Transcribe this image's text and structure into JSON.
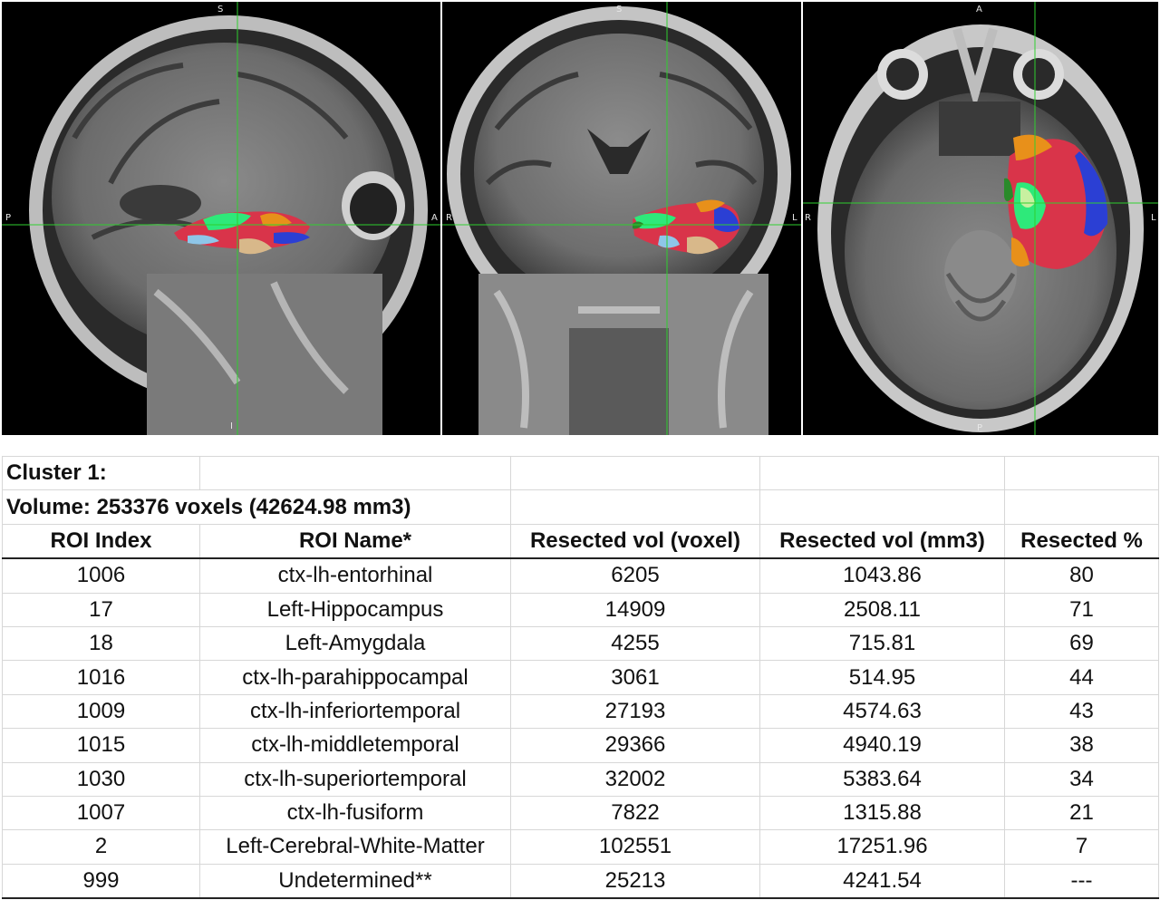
{
  "mri": {
    "sagittal": {
      "top": "S",
      "bottom": "I",
      "left": "P",
      "right": "A"
    },
    "coronal": {
      "top": "S",
      "left": "R",
      "right": "L"
    },
    "axial": {
      "top": "A",
      "bottom": "P",
      "left": "R",
      "right": "L"
    },
    "crosshair_color": "#2fcf2f",
    "roi_colors": {
      "hippocampus": "#2ee97a",
      "amygdala": "#c8f0a0",
      "temporal": "#d9344a",
      "superior": "#e8901a",
      "inferior": "#2b3fd4",
      "fusiform": "#d8b88a",
      "parahippocampal": "#8ec6e8",
      "entorhinal": "#2a8a2a"
    }
  },
  "table": {
    "cluster_label": "Cluster 1:",
    "volume_label": "Volume: 253376 voxels (42624.98 mm3)",
    "headers": [
      "ROI Index",
      "ROI Name*",
      "Resected vol (voxel)",
      "Resected vol (mm3)",
      "Resected %"
    ],
    "rows": [
      [
        "1006",
        "ctx-lh-entorhinal",
        "6205",
        "1043.86",
        "80"
      ],
      [
        "17",
        "Left-Hippocampus",
        "14909",
        "2508.11",
        "71"
      ],
      [
        "18",
        "Left-Amygdala",
        "4255",
        "715.81",
        "69"
      ],
      [
        "1016",
        "ctx-lh-parahippocampal",
        "3061",
        "514.95",
        "44"
      ],
      [
        "1009",
        "ctx-lh-inferiortemporal",
        "27193",
        "4574.63",
        "43"
      ],
      [
        "1015",
        "ctx-lh-middletemporal",
        "29366",
        "4940.19",
        "38"
      ],
      [
        "1030",
        "ctx-lh-superiortemporal",
        "32002",
        "5383.64",
        "34"
      ],
      [
        "1007",
        "ctx-lh-fusiform",
        "7822",
        "1315.88",
        "21"
      ],
      [
        "2",
        "Left-Cerebral-White-Matter",
        "102551",
        "17251.96",
        "7"
      ],
      [
        "999",
        "Undetermined**",
        "25213",
        "4241.54",
        "---"
      ]
    ]
  }
}
